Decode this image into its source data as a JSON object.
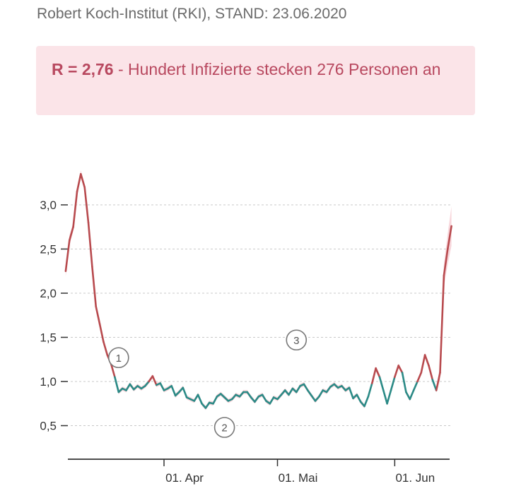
{
  "source": "Robert Koch-Institut (RKI), STAND: 23.06.2020",
  "headline": {
    "value": "R = 2,76",
    "text": " - Hundert Infizierte stecken 276 Personen an"
  },
  "colors": {
    "above_one": "#b84a4e",
    "below_one": "#2b8a86",
    "band": "#f5c9d0",
    "banner_bg": "#fbe4e8",
    "banner_text": "#b8485f"
  },
  "chart_data": {
    "type": "line",
    "xlabel": "",
    "ylabel": "",
    "ylim": [
      0.2,
      3.5
    ],
    "grid": true,
    "yticks": [
      {
        "value": 3.0,
        "label": "3,0"
      },
      {
        "value": 2.5,
        "label": "2,5"
      },
      {
        "value": 2.0,
        "label": "2,0"
      },
      {
        "value": 1.5,
        "label": "1,5"
      },
      {
        "value": 1.0,
        "label": "1,0"
      },
      {
        "value": 0.5,
        "label": "0,5"
      }
    ],
    "xticks": [
      {
        "date": "2020-04-01",
        "label": "01. Apr"
      },
      {
        "date": "2020-05-01",
        "label": "01. Mai"
      },
      {
        "date": "2020-06-01",
        "label": "01. Jun"
      }
    ],
    "annotations": [
      {
        "label": "1",
        "date": "2020-03-20",
        "value": 1.27
      },
      {
        "label": "2",
        "date": "2020-04-17",
        "value": 0.48
      },
      {
        "label": "3",
        "date": "2020-05-06",
        "value": 1.47
      }
    ],
    "series": [
      {
        "points": [
          [
            "2020-03-06",
            2.25
          ],
          [
            "2020-03-07",
            2.6
          ],
          [
            "2020-03-08",
            2.75
          ],
          [
            "2020-03-09",
            3.15
          ],
          [
            "2020-03-10",
            3.35
          ],
          [
            "2020-03-11",
            3.2
          ],
          [
            "2020-03-12",
            2.8
          ],
          [
            "2020-03-13",
            2.3
          ],
          [
            "2020-03-14",
            1.85
          ],
          [
            "2020-03-15",
            1.65
          ],
          [
            "2020-03-16",
            1.45
          ],
          [
            "2020-03-17",
            1.3
          ],
          [
            "2020-03-18",
            1.2
          ],
          [
            "2020-03-19",
            1.05
          ],
          [
            "2020-03-20",
            0.88
          ],
          [
            "2020-03-21",
            0.92
          ],
          [
            "2020-03-22",
            0.9
          ],
          [
            "2020-03-23",
            0.97
          ],
          [
            "2020-03-24",
            0.91
          ],
          [
            "2020-03-25",
            0.95
          ],
          [
            "2020-03-26",
            0.92
          ],
          [
            "2020-03-27",
            0.95
          ],
          [
            "2020-03-28",
            1.0
          ],
          [
            "2020-03-29",
            1.06
          ],
          [
            "2020-03-30",
            0.96
          ],
          [
            "2020-03-31",
            0.98
          ],
          [
            "2020-04-01",
            0.9
          ],
          [
            "2020-04-02",
            0.92
          ],
          [
            "2020-04-03",
            0.95
          ],
          [
            "2020-04-04",
            0.84
          ],
          [
            "2020-04-05",
            0.88
          ],
          [
            "2020-04-06",
            0.93
          ],
          [
            "2020-04-07",
            0.82
          ],
          [
            "2020-04-08",
            0.8
          ],
          [
            "2020-04-09",
            0.78
          ],
          [
            "2020-04-10",
            0.85
          ],
          [
            "2020-04-11",
            0.75
          ],
          [
            "2020-04-12",
            0.7
          ],
          [
            "2020-04-13",
            0.76
          ],
          [
            "2020-04-14",
            0.75
          ],
          [
            "2020-04-15",
            0.83
          ],
          [
            "2020-04-16",
            0.86
          ],
          [
            "2020-04-17",
            0.82
          ],
          [
            "2020-04-18",
            0.78
          ],
          [
            "2020-04-19",
            0.8
          ],
          [
            "2020-04-20",
            0.85
          ],
          [
            "2020-04-21",
            0.83
          ],
          [
            "2020-04-22",
            0.88
          ],
          [
            "2020-04-23",
            0.88
          ],
          [
            "2020-04-24",
            0.82
          ],
          [
            "2020-04-25",
            0.77
          ],
          [
            "2020-04-26",
            0.83
          ],
          [
            "2020-04-27",
            0.85
          ],
          [
            "2020-04-28",
            0.78
          ],
          [
            "2020-04-29",
            0.75
          ],
          [
            "2020-04-30",
            0.82
          ],
          [
            "2020-05-01",
            0.8
          ],
          [
            "2020-05-02",
            0.85
          ],
          [
            "2020-05-03",
            0.9
          ],
          [
            "2020-05-04",
            0.85
          ],
          [
            "2020-05-05",
            0.92
          ],
          [
            "2020-05-06",
            0.88
          ],
          [
            "2020-05-07",
            0.95
          ],
          [
            "2020-05-08",
            0.97
          ],
          [
            "2020-05-09",
            0.9
          ],
          [
            "2020-05-10",
            0.84
          ],
          [
            "2020-05-11",
            0.78
          ],
          [
            "2020-05-12",
            0.83
          ],
          [
            "2020-05-13",
            0.9
          ],
          [
            "2020-05-14",
            0.88
          ],
          [
            "2020-05-15",
            0.94
          ],
          [
            "2020-05-16",
            0.97
          ],
          [
            "2020-05-17",
            0.93
          ],
          [
            "2020-05-18",
            0.95
          ],
          [
            "2020-05-19",
            0.9
          ],
          [
            "2020-05-20",
            0.93
          ],
          [
            "2020-05-21",
            0.81
          ],
          [
            "2020-05-22",
            0.85
          ],
          [
            "2020-05-23",
            0.77
          ],
          [
            "2020-05-24",
            0.72
          ],
          [
            "2020-05-25",
            0.83
          ],
          [
            "2020-05-26",
            0.98
          ],
          [
            "2020-05-27",
            1.15
          ],
          [
            "2020-05-28",
            1.05
          ],
          [
            "2020-05-29",
            0.9
          ],
          [
            "2020-05-30",
            0.75
          ],
          [
            "2020-05-31",
            0.9
          ],
          [
            "2020-06-01",
            1.05
          ],
          [
            "2020-06-02",
            1.18
          ],
          [
            "2020-06-03",
            1.1
          ],
          [
            "2020-06-04",
            0.88
          ],
          [
            "2020-06-05",
            0.8
          ],
          [
            "2020-06-06",
            0.9
          ],
          [
            "2020-06-07",
            1.0
          ],
          [
            "2020-06-08",
            1.1
          ],
          [
            "2020-06-09",
            1.3
          ],
          [
            "2020-06-10",
            1.18
          ],
          [
            "2020-06-11",
            1.02
          ],
          [
            "2020-06-12",
            0.9
          ],
          [
            "2020-06-13",
            1.1
          ],
          [
            "2020-06-14",
            2.2
          ],
          [
            "2020-06-15",
            2.5
          ],
          [
            "2020-06-16",
            2.76
          ]
        ]
      }
    ]
  }
}
